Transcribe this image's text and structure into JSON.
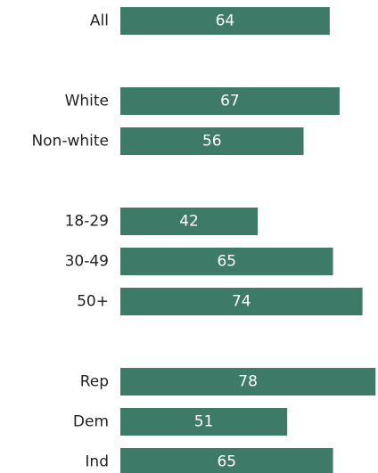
{
  "chart_data": {
    "type": "bar",
    "orientation": "horizontal",
    "title": "",
    "xlabel": "",
    "ylabel": "",
    "xlim": [
      0,
      80
    ],
    "grid": false,
    "legend": "none",
    "bar_color": "#3d7a67",
    "value_label_color": "#ffffff",
    "groups": [
      {
        "categories": [
          "All"
        ],
        "values": [
          64
        ]
      },
      {
        "categories": [
          "White",
          "Non-white"
        ],
        "values": [
          67,
          56
        ]
      },
      {
        "categories": [
          "18-29",
          "30-49",
          "50+"
        ],
        "values": [
          42,
          65,
          74
        ]
      },
      {
        "categories": [
          "Rep",
          "Dem",
          "Ind"
        ],
        "values": [
          78,
          51,
          65
        ]
      }
    ]
  }
}
